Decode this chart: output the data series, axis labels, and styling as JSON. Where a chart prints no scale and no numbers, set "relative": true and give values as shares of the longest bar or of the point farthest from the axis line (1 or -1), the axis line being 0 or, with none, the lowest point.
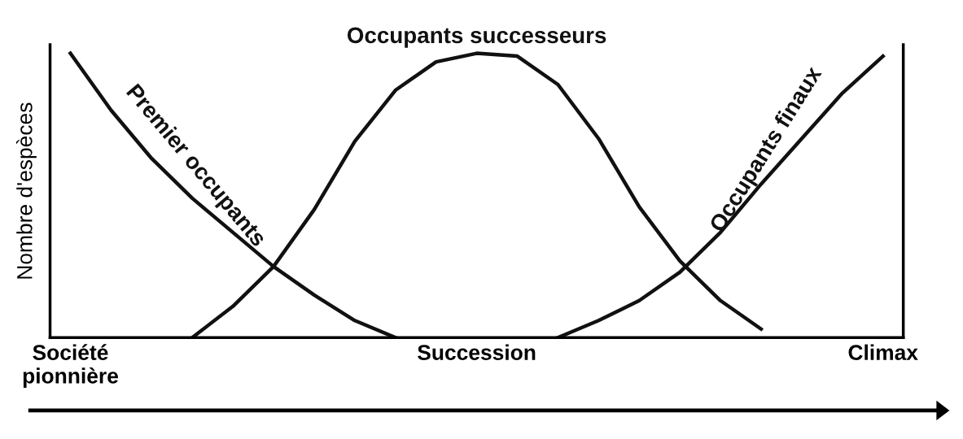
{
  "chart_data": {
    "type": "line",
    "relative": true,
    "ylabel": "Nombre d'espèces",
    "categories": [
      "Société\npionnière",
      null,
      null,
      null,
      null,
      null,
      null,
      null,
      null,
      null,
      "Succession",
      null,
      null,
      null,
      null,
      null,
      null,
      null,
      null,
      null,
      "Climax"
    ],
    "series": [
      {
        "name": "Premier occupants",
        "color": "#111111",
        "values": [
          1.0,
          0.8,
          0.63,
          0.49,
          0.37,
          0.25,
          0.15,
          0.06,
          0.0,
          null,
          null,
          null,
          null,
          null,
          null,
          null,
          null,
          null,
          null,
          null,
          null
        ]
      },
      {
        "name": "Occupants successeurs",
        "color": "#111111",
        "values": [
          null,
          null,
          null,
          0.0,
          0.11,
          0.25,
          0.45,
          0.69,
          0.87,
          0.97,
          1.0,
          0.99,
          0.89,
          0.7,
          0.46,
          0.27,
          0.13,
          0.03,
          null,
          null,
          null
        ]
      },
      {
        "name": "Occupants finaux",
        "color": "#111111",
        "values": [
          null,
          null,
          null,
          null,
          null,
          null,
          null,
          null,
          null,
          null,
          null,
          null,
          0.0,
          0.06,
          0.13,
          0.23,
          0.37,
          0.54,
          0.7,
          0.86,
          0.99
        ]
      }
    ],
    "grid": false,
    "legend": false,
    "marker": "none",
    "line_style": "solid"
  }
}
